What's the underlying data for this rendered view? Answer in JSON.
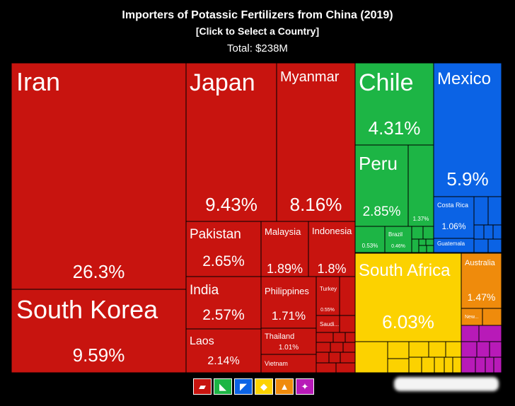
{
  "header": {
    "title": "Importers of Potassic Fertilizers from China (2019)",
    "subtitle": "[Click to Select a Country]",
    "total": "Total: $238M"
  },
  "colors": {
    "asia": "#c8140f",
    "americas_south": "#1db545",
    "americas_north": "#0b63e5",
    "africa": "#fcd200",
    "oceania": "#ef8b0c",
    "europe": "#b81ab8"
  },
  "chart_data": {
    "type": "treemap",
    "title": "Importers of Potassic Fertilizers from China (2019)",
    "total": "$238M",
    "items": [
      {
        "name": "Iran",
        "share": 26.3,
        "region": "asia",
        "label": "26.3%"
      },
      {
        "name": "South Korea",
        "share": 9.59,
        "region": "asia",
        "label": "9.59%"
      },
      {
        "name": "Japan",
        "share": 9.43,
        "region": "asia",
        "label": "9.43%"
      },
      {
        "name": "Myanmar",
        "share": 8.16,
        "region": "asia",
        "label": "8.16%"
      },
      {
        "name": "Pakistan",
        "share": 2.65,
        "region": "asia",
        "label": "2.65%"
      },
      {
        "name": "Malaysia",
        "share": 1.89,
        "region": "asia",
        "label": "1.89%"
      },
      {
        "name": "Indonesia",
        "share": 1.8,
        "region": "asia",
        "label": "1.8%"
      },
      {
        "name": "India",
        "share": 2.57,
        "region": "asia",
        "label": "2.57%"
      },
      {
        "name": "Philippines",
        "share": 1.71,
        "region": "asia",
        "label": "1.71%"
      },
      {
        "name": "Turkey",
        "share": 0.55,
        "region": "asia",
        "label": "0.55%"
      },
      {
        "name": "Saudi...",
        "share": null,
        "region": "asia",
        "label": ""
      },
      {
        "name": "Laos",
        "share": 2.14,
        "region": "asia",
        "label": "2.14%"
      },
      {
        "name": "Thailand",
        "share": 1.01,
        "region": "asia",
        "label": "1.01%"
      },
      {
        "name": "Vietnam",
        "share": null,
        "region": "asia",
        "label": ""
      },
      {
        "name": "Chile",
        "share": 4.31,
        "region": "americas_south",
        "label": "4.31%"
      },
      {
        "name": "Peru",
        "share": 2.85,
        "region": "americas_south",
        "label": "2.85%"
      },
      {
        "name": "",
        "share": 1.37,
        "region": "americas_south",
        "label": "1.37%"
      },
      {
        "name": "",
        "share": 0.53,
        "region": "americas_south",
        "label": "0.53%"
      },
      {
        "name": "Brazil",
        "share": 0.46,
        "region": "americas_south",
        "label": "0.46%"
      },
      {
        "name": "Mexico",
        "share": 5.9,
        "region": "americas_north",
        "label": "5.9%"
      },
      {
        "name": "Costa Rica",
        "share": 1.06,
        "region": "americas_north",
        "label": "1.06%"
      },
      {
        "name": "Guatemala",
        "share": null,
        "region": "americas_north",
        "label": ""
      },
      {
        "name": "South Africa",
        "share": 6.03,
        "region": "africa",
        "label": "6.03%"
      },
      {
        "name": "Australia",
        "share": 1.47,
        "region": "oceania",
        "label": "1.47%"
      },
      {
        "name": "New...",
        "share": null,
        "region": "oceania",
        "label": ""
      }
    ]
  },
  "legend": [
    {
      "icon": "asia-icon",
      "region": "asia",
      "glyph": "▰"
    },
    {
      "icon": "south-america-icon",
      "region": "americas_south",
      "glyph": "◣"
    },
    {
      "icon": "north-america-icon",
      "region": "americas_north",
      "glyph": "◤"
    },
    {
      "icon": "africa-icon",
      "region": "africa",
      "glyph": "◆"
    },
    {
      "icon": "oceania-icon",
      "region": "oceania",
      "glyph": "▲"
    },
    {
      "icon": "europe-icon",
      "region": "europe",
      "glyph": "✦"
    }
  ]
}
